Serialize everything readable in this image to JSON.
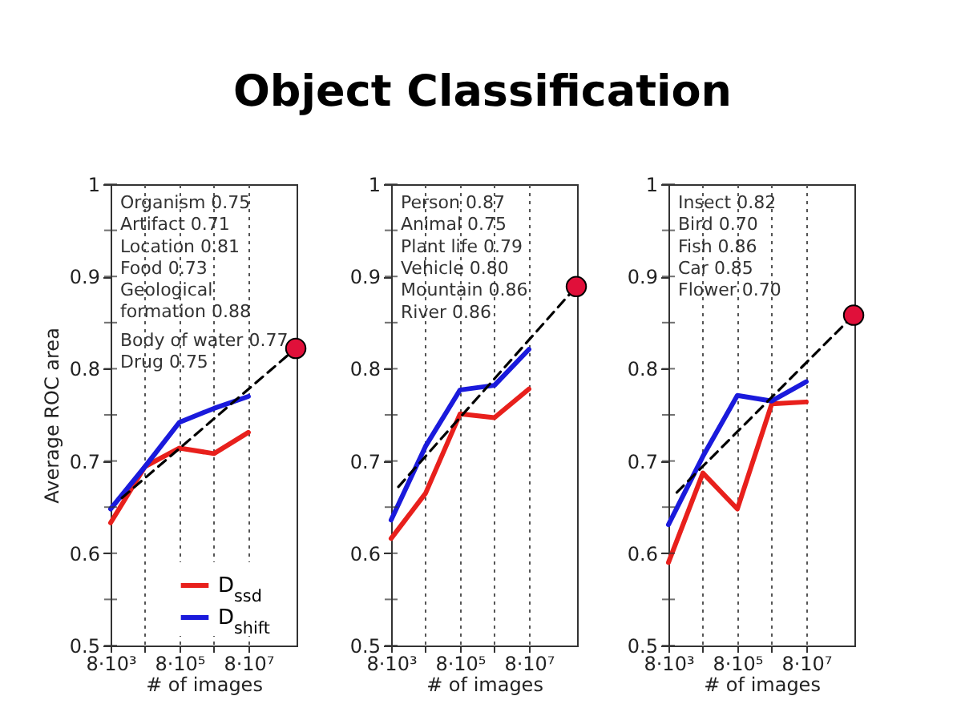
{
  "chart_data": [
    {
      "type": "line",
      "title": "Object Classification",
      "xlabel": "# of images",
      "ylabel": "Average ROC area",
      "annotations": [
        "Organism 0.75",
        "Artifact 0.71",
        "Location 0.81",
        "Food 0.73",
        "Geological\nformation 0.88",
        "Body of water 0.77",
        "Drug 0.75"
      ],
      "x": [
        8000,
        80000,
        800000,
        8000000,
        80000000
      ],
      "series": [
        {
          "name": "D$_{ssd}$",
          "color": "#e8201c",
          "values": [
            0.633,
            0.694,
            0.714,
            0.708,
            0.731
          ]
        },
        {
          "name": "D$_{shift}$",
          "color": "#1a1adc",
          "values": [
            0.648,
            0.694,
            0.742,
            0.757,
            0.77
          ]
        },
        {
          "type": "line",
          "line_style": "dashed",
          "color": "#000000",
          "x": [
            17000,
            1900000000
          ],
          "values": [
            0.66,
            0.822
          ]
        },
        {
          "type": "scatter",
          "color": "#e0103a",
          "x": [
            1900000000
          ],
          "values": [
            0.822
          ]
        }
      ],
      "xlim": [
        8000,
        2000000000
      ],
      "log": "x",
      "xticks": [
        {
          "value": 8000,
          "label": "8·10³"
        },
        {
          "value": 80000,
          "label": null
        },
        {
          "value": 800000,
          "label": "8·10⁵"
        },
        {
          "value": 8000000,
          "label": null
        },
        {
          "value": 80000000,
          "label": "8·10⁷"
        }
      ],
      "ylim": [
        0.5,
        1
      ],
      "yticks": [
        0.5,
        {
          "value": 0.55,
          "label": null
        },
        0.6,
        {
          "value": 0.65,
          "label": null
        },
        0.7,
        {
          "value": 0.75,
          "label": null
        },
        0.8,
        {
          "value": 0.85,
          "label": null
        },
        0.9,
        {
          "value": 0.95,
          "label": null
        },
        1
      ],
      "grid": "x",
      "legend": "bottom right"
    },
    {
      "type": "line",
      "xlabel": "# of images",
      "annotations": [
        "Person 0.87",
        "Animal 0.75",
        "Plant life 0.79",
        "Vehicle 0.80",
        "Mountain 0.86",
        "River 0.86"
      ],
      "x": [
        8000,
        80000,
        800000,
        8000000,
        80000000
      ],
      "series": [
        {
          "color": "#e8201c",
          "values": [
            0.616,
            0.665,
            0.751,
            0.747,
            0.778
          ]
        },
        {
          "color": "#1a1adc",
          "values": [
            0.636,
            0.716,
            0.777,
            0.782,
            0.821
          ]
        },
        {
          "type": "line",
          "line_style": "dashed",
          "color": "#000000",
          "x": [
            13000,
            1900000000
          ],
          "values": [
            0.672,
            0.889
          ]
        },
        {
          "type": "scatter",
          "color": "#e0103a",
          "x": [
            1900000000
          ],
          "values": [
            0.889
          ]
        }
      ],
      "xlim": [
        8000,
        2000000000
      ],
      "log": "x",
      "xticks": [
        {
          "value": 8000,
          "label": "8·10³"
        },
        {
          "value": 80000,
          "label": null
        },
        {
          "value": 800000,
          "label": "8·10⁵"
        },
        {
          "value": 8000000,
          "label": null
        },
        {
          "value": 80000000,
          "label": "8·10⁷"
        }
      ],
      "ylim": [
        0.5,
        1
      ],
      "yticks": [
        0.5,
        {
          "value": 0.55,
          "label": null
        },
        0.6,
        {
          "value": 0.65,
          "label": null
        },
        0.7,
        {
          "value": 0.75,
          "label": null
        },
        0.8,
        {
          "value": 0.85,
          "label": null
        },
        0.9,
        {
          "value": 0.95,
          "label": null
        },
        1
      ],
      "grid": "x"
    },
    {
      "type": "line",
      "xlabel": "# of images",
      "annotations": [
        "Insect 0.82",
        "Bird 0.70",
        "Fish 0.86",
        "Car 0.85",
        "Flower 0.70"
      ],
      "x": [
        8000,
        80000,
        800000,
        8000000,
        80000000
      ],
      "series": [
        {
          "color": "#e8201c",
          "values": [
            0.59,
            0.687,
            0.648,
            0.762,
            0.764
          ]
        },
        {
          "color": "#1a1adc",
          "values": [
            0.631,
            0.705,
            0.771,
            0.765,
            0.786
          ]
        },
        {
          "type": "line",
          "line_style": "dashed",
          "color": "#000000",
          "x": [
            14000,
            1900000000
          ],
          "values": [
            0.666,
            0.858
          ]
        },
        {
          "type": "scatter",
          "color": "#e0103a",
          "x": [
            1900000000
          ],
          "values": [
            0.858
          ]
        }
      ],
      "xlim": [
        8000,
        2000000000
      ],
      "log": "x",
      "xticks": [
        {
          "value": 8000,
          "label": "8·10³"
        },
        {
          "value": 80000,
          "label": null
        },
        {
          "value": 800000,
          "label": "8·10⁵"
        },
        {
          "value": 8000000,
          "label": null
        },
        {
          "value": 80000000,
          "label": "8·10⁷"
        }
      ],
      "ylim": [
        0.5,
        1
      ],
      "yticks": [
        0.5,
        {
          "value": 0.55,
          "label": null
        },
        0.6,
        {
          "value": 0.65,
          "label": null
        },
        0.7,
        {
          "value": 0.75,
          "label": null
        },
        0.8,
        {
          "value": 0.85,
          "label": null
        },
        0.9,
        {
          "value": 0.95,
          "label": null
        },
        1
      ],
      "grid": "x"
    }
  ]
}
